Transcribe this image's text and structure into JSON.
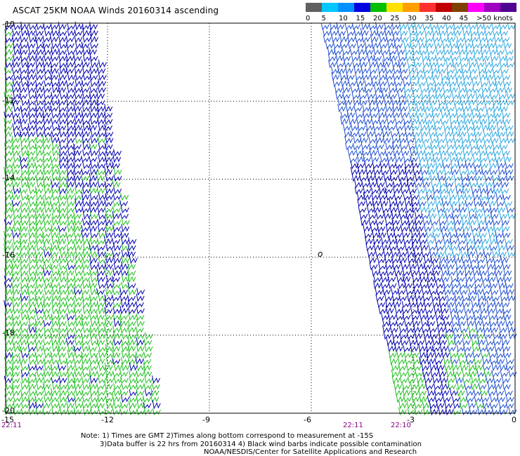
{
  "title": "ASCAT 25KM NOAA Winds 20160314 ascending",
  "legend": {
    "labels": [
      "0",
      "5",
      "10",
      "15",
      "20",
      "25",
      "30",
      "35",
      "40",
      "45",
      ">50 knots"
    ],
    "colors": [
      "#606060",
      "#00c8ff",
      "#0090ff",
      "#0000e0",
      "#00c000",
      "#ffe000",
      "#ffa000",
      "#ff3030",
      "#c00000",
      "#804000",
      "#ff00ff",
      "#a000c0",
      "#500090"
    ]
  },
  "axes": {
    "lat_labels": [
      "-10",
      "-12",
      "-14",
      "-16",
      "-18",
      "-20"
    ],
    "lon_labels": [
      "-15",
      "-12",
      "-9",
      "-6",
      "-3",
      "0"
    ]
  },
  "times": {
    "t1": "22:11",
    "t2": "22:11",
    "t3": "22:10"
  },
  "footer": {
    "line1": "Note: 1) Times are GMT 2)Times along bottom correspond to measurement at -15S",
    "line2": "3)Data buffer is 22 hrs from 20160314 4) Black wind barbs indicate possible contamination",
    "line3": "NOAA/NESDIS/Center for Satellite Applications and Research"
  },
  "island_symbol": "o",
  "colors": {
    "grid": "#000000",
    "barb_green": "#20c020",
    "barb_navy": "#0000b0",
    "barb_cyan": "#30a8e0",
    "barb_blue": "#2050d0",
    "time_text": "#800080"
  }
}
